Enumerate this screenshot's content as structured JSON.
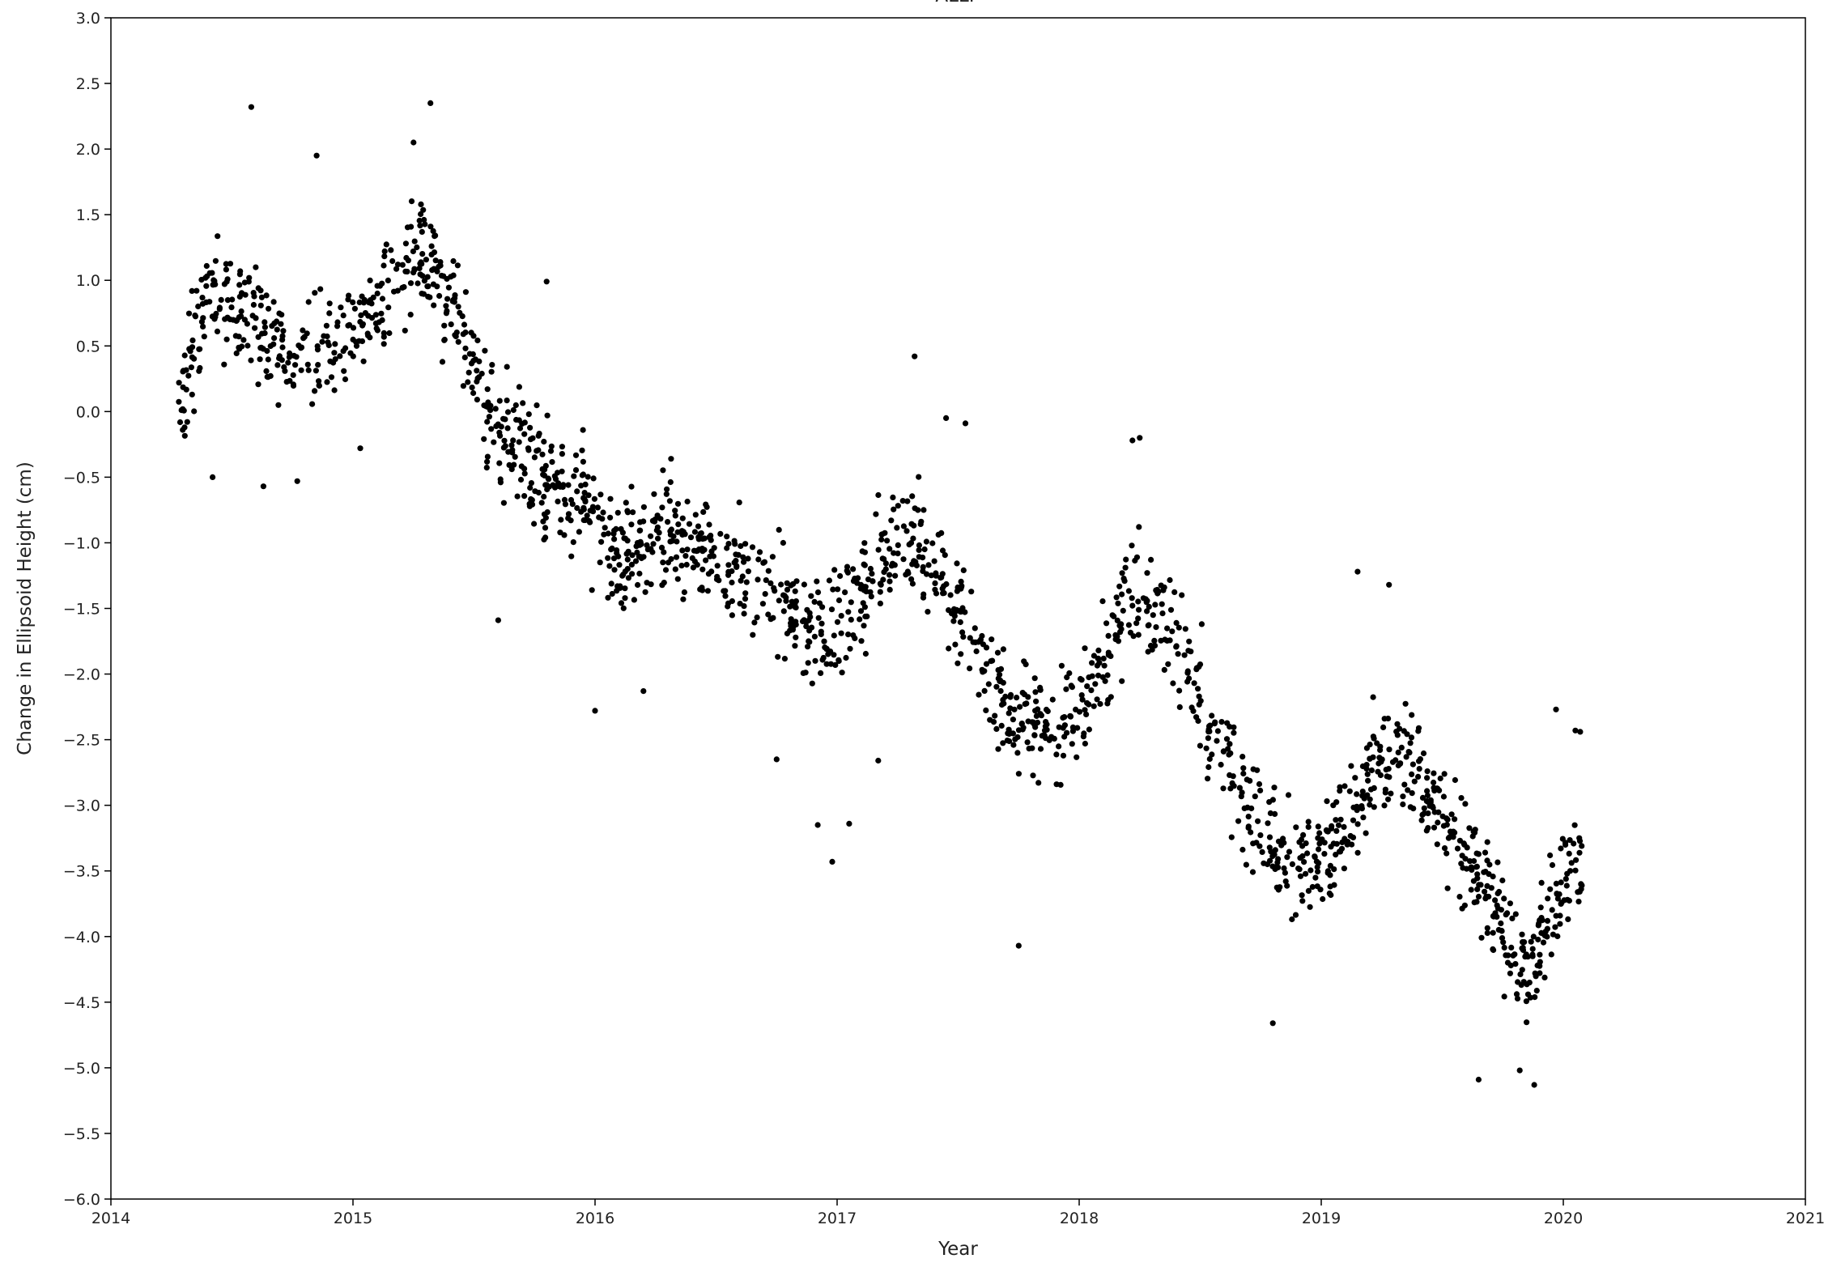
{
  "chart_data": {
    "type": "scatter",
    "title": "ALLP",
    "xlabel": "Year",
    "ylabel": "Change in Ellipsoid Height (cm)",
    "xlim": [
      2014,
      2021
    ],
    "ylim": [
      -6.0,
      3.0
    ],
    "x_ticks": [
      2014,
      2015,
      2016,
      2017,
      2018,
      2019,
      2020,
      2021
    ],
    "x_tick_labels": [
      "2014",
      "2015",
      "2016",
      "2017",
      "2018",
      "2019",
      "2020",
      "2021"
    ],
    "y_ticks": [
      3.0,
      2.5,
      2.0,
      1.5,
      1.0,
      0.5,
      0.0,
      -0.5,
      -1.0,
      -1.5,
      -2.0,
      -2.5,
      -3.0,
      -3.5,
      -4.0,
      -4.5,
      -5.0,
      -5.5,
      -6.0
    ],
    "y_tick_labels": [
      "3.0",
      "2.5",
      "2.0",
      "1.5",
      "1.0",
      "0.5",
      "0.0",
      "−0.5",
      "−1.0",
      "−1.5",
      "−2.0",
      "−2.5",
      "−3.0",
      "−3.5",
      "−4.0",
      "−4.5",
      "−5.0",
      "−5.5",
      "−6.0"
    ],
    "grid": false,
    "marker_color": "#000000",
    "trend_points": [
      [
        2014.28,
        0.1
      ],
      [
        2014.4,
        0.85
      ],
      [
        2014.6,
        0.7
      ],
      [
        2014.75,
        0.35
      ],
      [
        2014.95,
        0.6
      ],
      [
        2015.1,
        0.75
      ],
      [
        2015.3,
        1.2
      ],
      [
        2015.45,
        0.6
      ],
      [
        2015.55,
        0.0
      ],
      [
        2015.75,
        -0.4
      ],
      [
        2015.95,
        -0.75
      ],
      [
        2016.1,
        -1.1
      ],
      [
        2016.3,
        -0.9
      ],
      [
        2016.5,
        -1.1
      ],
      [
        2016.75,
        -1.4
      ],
      [
        2016.95,
        -1.8
      ],
      [
        2017.1,
        -1.4
      ],
      [
        2017.3,
        -0.9
      ],
      [
        2017.5,
        -1.5
      ],
      [
        2017.7,
        -2.3
      ],
      [
        2017.9,
        -2.4
      ],
      [
        2018.05,
        -2.2
      ],
      [
        2018.2,
        -1.4
      ],
      [
        2018.4,
        -1.7
      ],
      [
        2018.55,
        -2.4
      ],
      [
        2018.7,
        -3.0
      ],
      [
        2018.9,
        -3.5
      ],
      [
        2019.05,
        -3.3
      ],
      [
        2019.2,
        -2.7
      ],
      [
        2019.35,
        -2.6
      ],
      [
        2019.55,
        -3.2
      ],
      [
        2019.7,
        -3.7
      ],
      [
        2019.85,
        -4.3
      ],
      [
        2019.98,
        -3.7
      ],
      [
        2020.08,
        -3.4
      ]
    ],
    "scatter_halfwidth": 0.45,
    "n_points": 1900,
    "outliers": [
      [
        2014.58,
        2.32
      ],
      [
        2014.85,
        1.95
      ],
      [
        2015.32,
        2.35
      ],
      [
        2015.25,
        2.05
      ],
      [
        2014.42,
        -0.5
      ],
      [
        2014.63,
        -0.57
      ],
      [
        2014.77,
        -0.53
      ],
      [
        2015.03,
        -0.28
      ],
      [
        2015.8,
        0.99
      ],
      [
        2017.32,
        0.42
      ],
      [
        2017.53,
        -0.09
      ],
      [
        2017.45,
        -0.05
      ],
      [
        2018.22,
        -0.22
      ],
      [
        2018.25,
        -0.2
      ],
      [
        2019.15,
        -1.22
      ],
      [
        2019.28,
        -1.32
      ],
      [
        2016.98,
        -3.43
      ],
      [
        2016.92,
        -3.15
      ],
      [
        2017.05,
        -3.14
      ],
      [
        2017.75,
        -4.07
      ],
      [
        2018.8,
        -4.66
      ],
      [
        2019.65,
        -5.09
      ],
      [
        2019.88,
        -5.13
      ],
      [
        2019.82,
        -5.02
      ],
      [
        2019.97,
        -2.27
      ],
      [
        2020.07,
        -2.44
      ],
      [
        2020.05,
        -2.43
      ],
      [
        2015.6,
        -1.59
      ],
      [
        2016.0,
        -2.28
      ],
      [
        2016.2,
        -2.13
      ],
      [
        2016.75,
        -2.65
      ],
      [
        2017.17,
        -2.66
      ]
    ]
  }
}
